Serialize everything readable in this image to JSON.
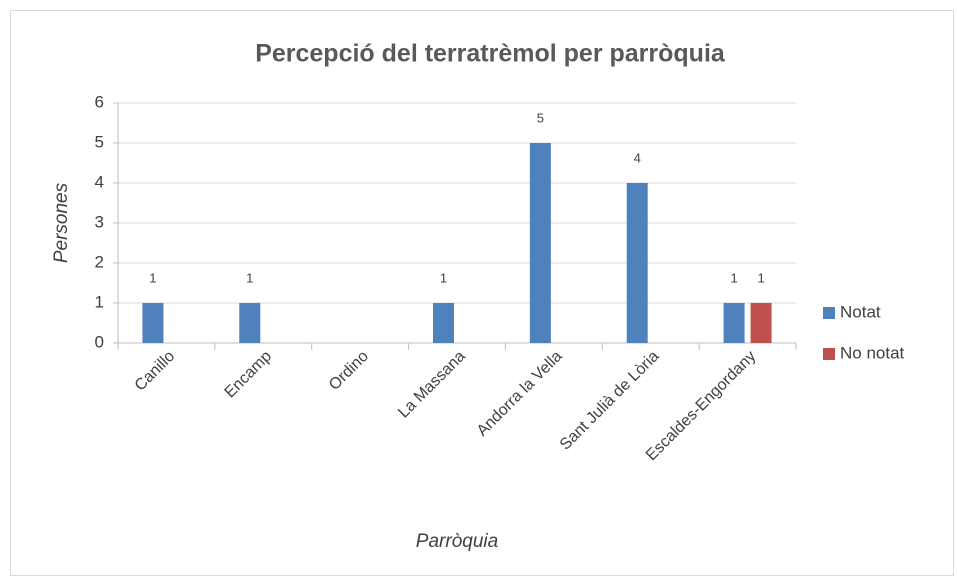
{
  "chart_data": {
    "type": "bar",
    "title": "Percepció del terratrèmol per parròquia",
    "x_label": "Parròquia",
    "y_label": "Persones",
    "categories": [
      "Canillo",
      "Encamp",
      "Ordino",
      "La Massana",
      "Andorra la Vella",
      "Sant Julià de Lòria",
      "Escaldes-Engordany"
    ],
    "series": [
      {
        "name": "Notat",
        "color": "#4f81bd",
        "values": [
          1,
          1,
          null,
          1,
          5,
          4,
          1
        ]
      },
      {
        "name": "No notat",
        "color": "#c0504d",
        "values": [
          null,
          null,
          null,
          null,
          null,
          null,
          1
        ]
      }
    ],
    "ylim": [
      0,
      6
    ],
    "yticks": [
      0,
      1,
      2,
      3,
      4,
      5,
      6
    ],
    "grid": true,
    "legend": "right"
  }
}
